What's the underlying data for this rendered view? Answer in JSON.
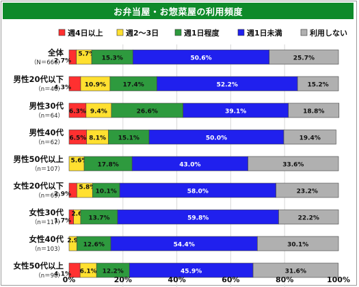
{
  "chart_data": {
    "type": "bar",
    "orientation": "horizontal",
    "stacked": true,
    "title": "お弁当屋・お惣菜屋の利用頻度",
    "legend_position": "top",
    "xlim": [
      0,
      100
    ],
    "x_ticks": [
      "0%",
      "20%",
      "40%",
      "60%",
      "80%",
      "100%"
    ],
    "categories": [
      {
        "label": "全体",
        "n": "（N＝666）"
      },
      {
        "label": "男性20代以下",
        "n": "（n＝46）"
      },
      {
        "label": "男性30代",
        "n": "（n＝64）"
      },
      {
        "label": "男性40代",
        "n": "（n＝62）"
      },
      {
        "label": "男性50代以上",
        "n": "（n＝107）"
      },
      {
        "label": "女性20代以下",
        "n": "（n＝69）"
      },
      {
        "label": "女性30代",
        "n": "（n＝117）"
      },
      {
        "label": "女性40代",
        "n": "（n＝103）"
      },
      {
        "label": "女性50代以上",
        "n": "（n＝98）"
      }
    ],
    "series": [
      {
        "name": "週4日以上",
        "color": "#ff3030",
        "values": [
          2.7,
          4.3,
          6.3,
          6.5,
          0,
          2.9,
          1.7,
          0,
          4.1
        ],
        "labels": [
          "2.7%",
          "4.3%",
          "6.3%",
          "6.5%",
          "",
          "2.9%",
          "1.7%",
          "",
          "4.1%"
        ]
      },
      {
        "name": "週2～3日",
        "color": "#ffe030",
        "values": [
          5.7,
          10.9,
          9.4,
          8.1,
          5.6,
          5.8,
          2.6,
          2.9,
          6.1
        ],
        "labels": [
          "5.7%",
          "10.9%",
          "9.4%",
          "8.1%",
          "5.6%",
          "5.8%",
          "2.6%",
          "2.9%",
          "6.1%"
        ]
      },
      {
        "name": "週1日程度",
        "color": "#2e9a3e",
        "values": [
          15.3,
          17.4,
          26.6,
          15.1,
          17.8,
          10.1,
          13.7,
          12.6,
          12.2
        ],
        "labels": [
          "15.3%",
          "17.4%",
          "26.6%",
          "15.1%",
          "17.8%",
          "10.1%",
          "13.7%",
          "12.6%",
          "12.2%"
        ]
      },
      {
        "name": "週1日未満",
        "color": "#2020ee",
        "values": [
          50.6,
          52.2,
          39.1,
          50.0,
          43.0,
          58.0,
          59.8,
          54.4,
          45.9
        ],
        "labels": [
          "50.6%",
          "52.2%",
          "39.1%",
          "50.0%",
          "43.0%",
          "58.0%",
          "59.8%",
          "54.4%",
          "45.9%"
        ]
      },
      {
        "name": "利用しない",
        "color": "#b0b0b0",
        "values": [
          25.7,
          15.2,
          18.8,
          19.4,
          33.6,
          23.2,
          22.2,
          30.1,
          31.6
        ],
        "labels": [
          "25.7%",
          "15.2%",
          "18.8%",
          "19.4%",
          "33.6%",
          "23.2%",
          "22.2%",
          "30.1%",
          "31.6%"
        ]
      }
    ]
  }
}
